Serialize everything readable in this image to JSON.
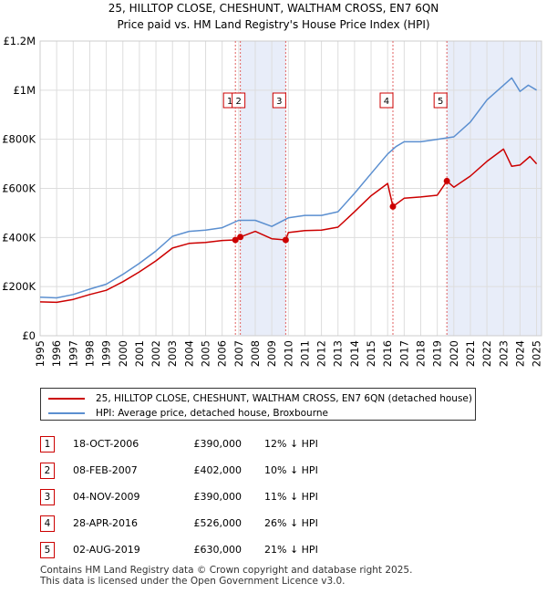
{
  "chart_data": {
    "type": "line",
    "title": "25, HILLTOP CLOSE, CHESHUNT, WALTHAM CROSS, EN7 6QN",
    "subtitle": "Price paid vs. HM Land Registry's House Price Index (HPI)",
    "xlabel": "",
    "ylabel": "",
    "xlim": [
      1995,
      2025.3
    ],
    "ylim": [
      0,
      1200000
    ],
    "x_ticks": [
      "1995",
      "1996",
      "1997",
      "1998",
      "1999",
      "2000",
      "2001",
      "2002",
      "2003",
      "2004",
      "2005",
      "2006",
      "2007",
      "2008",
      "2009",
      "2010",
      "2011",
      "2012",
      "2013",
      "2014",
      "2015",
      "2016",
      "2017",
      "2018",
      "2019",
      "2020",
      "2021",
      "2022",
      "2023",
      "2024",
      "2025"
    ],
    "y_ticks": [
      {
        "value": 0,
        "label": "£0"
      },
      {
        "value": 200000,
        "label": "£200K"
      },
      {
        "value": 400000,
        "label": "£400K"
      },
      {
        "value": 600000,
        "label": "£600K"
      },
      {
        "value": 800000,
        "label": "£800K"
      },
      {
        "value": 1000000,
        "label": "£1M"
      },
      {
        "value": 1200000,
        "label": "£1.2M"
      }
    ],
    "grid": true,
    "shaded_regions": [
      [
        2007.1,
        2009.85
      ],
      [
        2019.6,
        2025.3
      ]
    ],
    "series": [
      {
        "name": "HPI: Average price, detached house, Broxbourne",
        "color": "#5b8fd0",
        "points": [
          [
            1995,
            157000
          ],
          [
            1996,
            154000
          ],
          [
            1997,
            168000
          ],
          [
            1998,
            190000
          ],
          [
            1999,
            210000
          ],
          [
            2000,
            250000
          ],
          [
            2001,
            295000
          ],
          [
            2002,
            345000
          ],
          [
            2003,
            405000
          ],
          [
            2004,
            425000
          ],
          [
            2005,
            430000
          ],
          [
            2006,
            440000
          ],
          [
            2007,
            470000
          ],
          [
            2008,
            470000
          ],
          [
            2009,
            445000
          ],
          [
            2010,
            480000
          ],
          [
            2011,
            490000
          ],
          [
            2012,
            490000
          ],
          [
            2013,
            505000
          ],
          [
            2014,
            580000
          ],
          [
            2015,
            660000
          ],
          [
            2016,
            740000
          ],
          [
            2016.5,
            770000
          ],
          [
            2017,
            790000
          ],
          [
            2018,
            790000
          ],
          [
            2019,
            800000
          ],
          [
            2020,
            810000
          ],
          [
            2021,
            870000
          ],
          [
            2022,
            960000
          ],
          [
            2023,
            1020000
          ],
          [
            2023.5,
            1050000
          ],
          [
            2024,
            995000
          ],
          [
            2024.5,
            1020000
          ],
          [
            2025,
            1000000
          ]
        ]
      },
      {
        "name": "25, HILLTOP CLOSE, CHESHUNT, WALTHAM CROSS, EN7 6QN (detached house)",
        "color": "#cc0000",
        "points": [
          [
            1995,
            138000
          ],
          [
            1996,
            136000
          ],
          [
            1997,
            148000
          ],
          [
            1998,
            168000
          ],
          [
            1999,
            185000
          ],
          [
            2000,
            220000
          ],
          [
            2001,
            260000
          ],
          [
            2002,
            305000
          ],
          [
            2003,
            357000
          ],
          [
            2004,
            376000
          ],
          [
            2005,
            380000
          ],
          [
            2006,
            388000
          ],
          [
            2006.8,
            390000
          ],
          [
            2007.1,
            402000
          ],
          [
            2008,
            425000
          ],
          [
            2009,
            395000
          ],
          [
            2009.84,
            390000
          ],
          [
            2010,
            420000
          ],
          [
            2011,
            428000
          ],
          [
            2012,
            430000
          ],
          [
            2013,
            442000
          ],
          [
            2014,
            505000
          ],
          [
            2015,
            570000
          ],
          [
            2016.0,
            620000
          ],
          [
            2016.32,
            526000
          ],
          [
            2017,
            560000
          ],
          [
            2018,
            565000
          ],
          [
            2019,
            572000
          ],
          [
            2019.58,
            630000
          ],
          [
            2020,
            605000
          ],
          [
            2021,
            650000
          ],
          [
            2022,
            710000
          ],
          [
            2023,
            760000
          ],
          [
            2023.5,
            690000
          ],
          [
            2024,
            695000
          ],
          [
            2024.6,
            730000
          ],
          [
            2025,
            700000
          ]
        ]
      }
    ],
    "transactions": [
      {
        "id": "1",
        "x": 2006.8,
        "value": 390000
      },
      {
        "id": "2",
        "x": 2007.1,
        "value": 402000
      },
      {
        "id": "3",
        "x": 2009.84,
        "value": 390000
      },
      {
        "id": "4",
        "x": 2016.32,
        "value": 526000
      },
      {
        "id": "5",
        "x": 2019.58,
        "value": 630000
      }
    ]
  },
  "legend": {
    "property_label": "25, HILLTOP CLOSE, CHESHUNT, WALTHAM CROSS, EN7 6QN (detached house)",
    "property_color": "#cc0000",
    "hpi_label": "HPI: Average price, detached house, Broxbourne",
    "hpi_color": "#5b8fd0"
  },
  "table": [
    {
      "id": "1",
      "date": "18-OCT-2006",
      "price": "£390,000",
      "hpi": "12% ↓ HPI"
    },
    {
      "id": "2",
      "date": "08-FEB-2007",
      "price": "£402,000",
      "hpi": "10% ↓ HPI"
    },
    {
      "id": "3",
      "date": "04-NOV-2009",
      "price": "£390,000",
      "hpi": "11% ↓ HPI"
    },
    {
      "id": "4",
      "date": "28-APR-2016",
      "price": "£526,000",
      "hpi": "26% ↓ HPI"
    },
    {
      "id": "5",
      "date": "02-AUG-2019",
      "price": "£630,000",
      "hpi": "21% ↓ HPI"
    }
  ],
  "footer": {
    "line1": "Contains HM Land Registry data © Crown copyright and database right 2025.",
    "line2": "This data is licensed under the Open Government Licence v3.0."
  }
}
